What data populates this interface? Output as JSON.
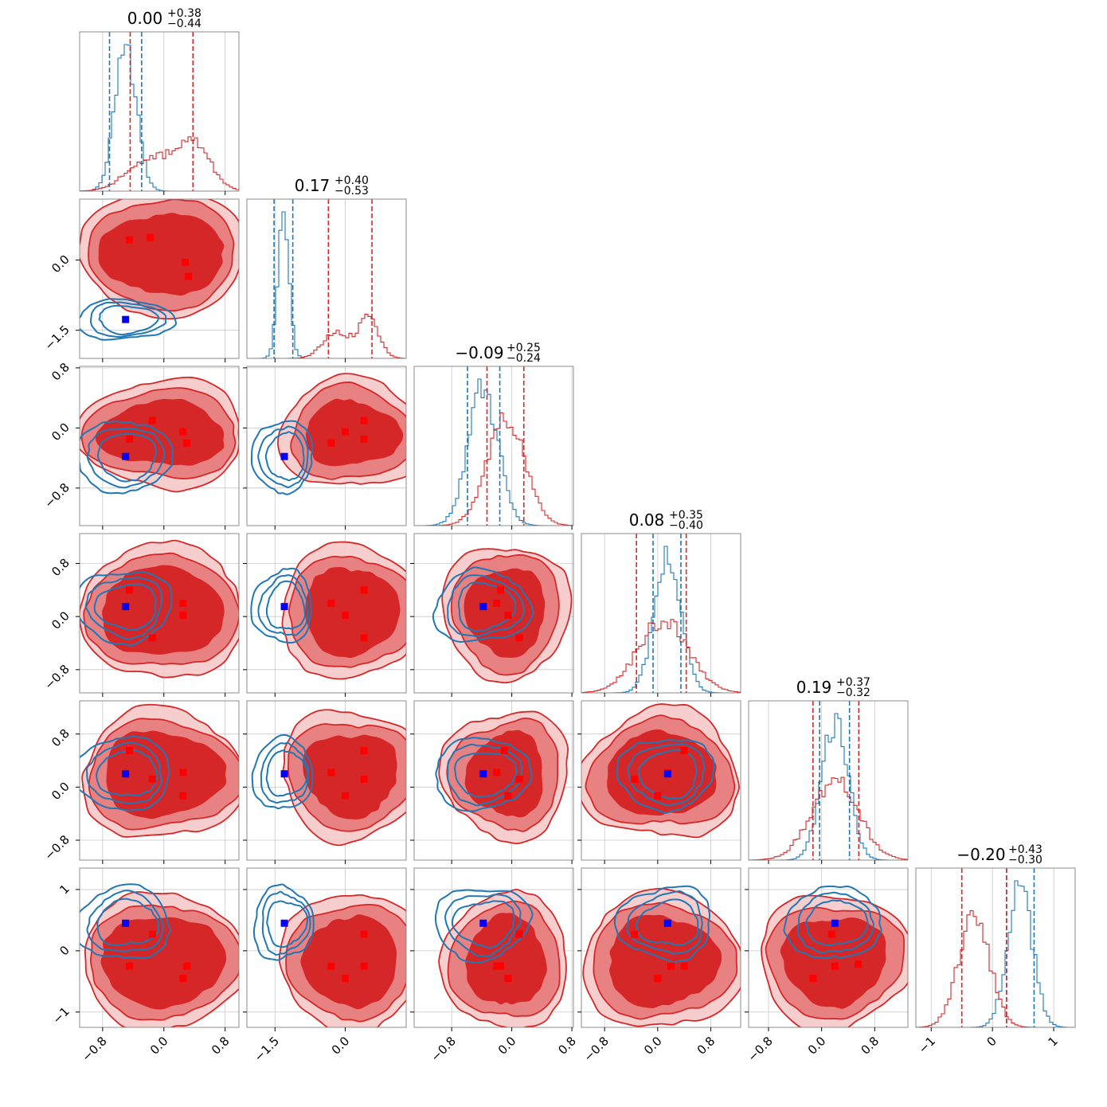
{
  "chart_data": {
    "type": "corner",
    "n_params": 6,
    "series": [
      {
        "name": "",
        "color": "#d62728",
        "point_color": "#ff0000",
        "fill": "#d62728"
      },
      {
        "name": "",
        "color": "#1f77b4",
        "point_color": "#0000ff",
        "fill": "none"
      }
    ],
    "titles": [
      {
        "value": "0.00",
        "plus": "+0.38",
        "minus": "−0.44"
      },
      {
        "value": "0.17",
        "plus": "+0.40",
        "minus": "−0.53"
      },
      {
        "value": "−0.09",
        "plus": "+0.25",
        "minus": "−0.24"
      },
      {
        "value": "0.08",
        "plus": "+0.35",
        "minus": "−0.40"
      },
      {
        "value": "0.19",
        "plus": "+0.37",
        "minus": "−0.32"
      },
      {
        "value": "−0.20",
        "plus": "+0.43",
        "minus": "−0.30"
      }
    ],
    "ranges": [
      [
        -1.1,
        0.98
      ],
      [
        -2.1,
        1.3
      ],
      [
        -1.3,
        0.82
      ],
      [
        -1.15,
        1.25
      ],
      [
        -1.1,
        1.3
      ],
      [
        -1.25,
        1.35
      ]
    ],
    "ticks": [
      [
        {
          "v": -0.8,
          "label": "−0.8"
        },
        {
          "v": 0.0,
          "label": "0.0"
        },
        {
          "v": 0.8,
          "label": "0.8"
        }
      ],
      [
        {
          "v": -1.5,
          "label": "−1.5"
        },
        {
          "v": 0.0,
          "label": "0.0"
        }
      ],
      [
        {
          "v": -0.8,
          "label": "−0.8"
        },
        {
          "v": 0.0,
          "label": "0.0"
        },
        {
          "v": 0.8,
          "label": "0.8"
        }
      ],
      [
        {
          "v": -0.8,
          "label": "−0.8"
        },
        {
          "v": 0.0,
          "label": "0.0"
        },
        {
          "v": 0.8,
          "label": "0.8"
        }
      ],
      [
        {
          "v": -0.8,
          "label": "−0.8"
        },
        {
          "v": 0.0,
          "label": "0.0"
        },
        {
          "v": 0.8,
          "label": "0.8"
        }
      ],
      [
        {
          "v": -1,
          "label": "−1"
        },
        {
          "v": 0,
          "label": "0"
        },
        {
          "v": 1,
          "label": "1"
        }
      ]
    ],
    "quantiles": [
      {
        "red": [
          -0.44,
          0.38
        ],
        "red_median": 0.0,
        "blue": [
          -0.71,
          -0.29
        ]
      },
      {
        "red": [
          -0.36,
          0.57
        ],
        "red_median": 0.17,
        "blue": [
          -1.52,
          -1.12
        ]
      },
      {
        "red": [
          -0.33,
          0.16
        ],
        "red_median": -0.09,
        "blue": [
          -0.59,
          -0.16
        ]
      },
      {
        "red": [
          -0.32,
          0.43
        ],
        "red_median": 0.08,
        "blue": [
          -0.07,
          0.35
        ]
      },
      {
        "red": [
          -0.13,
          0.56
        ],
        "red_median": 0.19,
        "blue": [
          -0.03,
          0.42
        ]
      },
      {
        "red": [
          -0.5,
          0.23
        ],
        "red_median": -0.2,
        "blue": [
          0.23,
          0.68
        ]
      }
    ],
    "hist": [
      {
        "red": {
          "mix": [
            [
              0.45,
              -0.2,
              0.28
            ],
            [
              0.55,
              0.38,
              0.22
            ]
          ]
        },
        "blue": {
          "mix": [
            [
              1.0,
              -0.5,
              0.14
            ]
          ]
        }
      },
      {
        "red": {
          "mix": [
            [
              0.45,
              -0.2,
              0.28
            ],
            [
              0.55,
              0.5,
              0.22
            ]
          ]
        },
        "blue": {
          "mix": [
            [
              1.0,
              -1.32,
              0.12
            ]
          ]
        }
      },
      {
        "red": {
          "mix": [
            [
              1.0,
              -0.08,
              0.25
            ]
          ]
        },
        "blue": {
          "mix": [
            [
              1.0,
              -0.38,
              0.2
            ]
          ]
        }
      },
      {
        "red": {
          "mix": [
            [
              1.0,
              0.08,
              0.38
            ]
          ]
        },
        "blue": {
          "mix": [
            [
              1.0,
              0.15,
              0.2
            ]
          ]
        }
      },
      {
        "red": {
          "mix": [
            [
              1.0,
              0.2,
              0.35
            ]
          ]
        },
        "blue": {
          "mix": [
            [
              1.0,
              0.2,
              0.2
            ]
          ]
        }
      },
      {
        "red": {
          "mix": [
            [
              1.0,
              -0.3,
              0.25
            ]
          ]
        },
        "blue": {
          "mix": [
            [
              1.0,
              0.45,
              0.2
            ]
          ]
        }
      }
    ],
    "pairs": [
      {
        "row": 1,
        "col": 0,
        "red_points": [
          [
            -0.45,
            0.43
          ],
          [
            -0.18,
            0.48
          ],
          [
            0.28,
            -0.05
          ],
          [
            0.32,
            -0.35
          ]
        ],
        "blue_point": [
          -0.5,
          -1.27
        ]
      },
      {
        "row": 2,
        "col": 0,
        "red_points": [
          [
            -0.45,
            -0.15
          ],
          [
            -0.15,
            0.1
          ],
          [
            0.25,
            -0.05
          ],
          [
            0.3,
            -0.2
          ]
        ],
        "blue_point": [
          -0.5,
          -0.38
        ]
      },
      {
        "row": 2,
        "col": 1,
        "red_points": [
          [
            -0.3,
            -0.2
          ],
          [
            0.0,
            -0.05
          ],
          [
            0.4,
            0.1
          ],
          [
            0.4,
            -0.15
          ]
        ],
        "blue_point": [
          -1.3,
          -0.38
        ]
      },
      {
        "row": 2,
        "col": 2,
        "red_points": [],
        "blue_point": null
      },
      {
        "row": 3,
        "col": 0,
        "red_points": [
          [
            -0.45,
            0.4
          ],
          [
            -0.15,
            -0.32
          ],
          [
            0.25,
            0.2
          ],
          [
            0.25,
            0.02
          ]
        ],
        "blue_point": [
          -0.5,
          0.15
        ]
      },
      {
        "row": 3,
        "col": 1,
        "red_points": [
          [
            -0.3,
            0.2
          ],
          [
            0.0,
            0.02
          ],
          [
            0.4,
            0.4
          ],
          [
            0.4,
            -0.32
          ]
        ],
        "blue_point": [
          -1.3,
          0.15
        ]
      },
      {
        "row": 3,
        "col": 2,
        "red_points": [
          [
            -0.15,
            0.4
          ],
          [
            -0.2,
            0.2
          ],
          [
            -0.05,
            0.02
          ],
          [
            0.1,
            -0.32
          ]
        ],
        "blue_point": [
          -0.38,
          0.15
        ]
      },
      {
        "row": 4,
        "col": 0,
        "red_points": [
          [
            -0.45,
            0.55
          ],
          [
            -0.15,
            0.12
          ],
          [
            0.25,
            0.22
          ],
          [
            0.25,
            -0.13
          ]
        ],
        "blue_point": [
          -0.5,
          0.2
        ]
      },
      {
        "row": 4,
        "col": 1,
        "red_points": [
          [
            -0.3,
            0.22
          ],
          [
            0.0,
            -0.13
          ],
          [
            0.4,
            0.55
          ],
          [
            0.4,
            0.12
          ]
        ],
        "blue_point": [
          -1.3,
          0.2
        ]
      },
      {
        "row": 4,
        "col": 2,
        "red_points": [
          [
            -0.2,
            0.22
          ],
          [
            0.1,
            0.12
          ],
          [
            -0.05,
            -0.13
          ],
          [
            -0.1,
            0.55
          ]
        ],
        "blue_point": [
          -0.38,
          0.2
        ]
      },
      {
        "row": 4,
        "col": 3,
        "red_points": [
          [
            -0.35,
            0.12
          ],
          [
            0.15,
            0.22
          ],
          [
            0.4,
            0.55
          ],
          [
            0.0,
            -0.13
          ]
        ],
        "blue_point": [
          0.15,
          0.2
        ]
      },
      {
        "row": 5,
        "col": 0,
        "red_points": [
          [
            -0.45,
            -0.25
          ],
          [
            -0.15,
            0.27
          ],
          [
            0.25,
            -0.45
          ],
          [
            0.3,
            -0.25
          ]
        ],
        "blue_point": [
          -0.5,
          0.45
        ]
      },
      {
        "row": 5,
        "col": 1,
        "red_points": [
          [
            -0.3,
            -0.25
          ],
          [
            0.0,
            -0.45
          ],
          [
            0.4,
            0.27
          ],
          [
            0.4,
            -0.25
          ]
        ],
        "blue_point": [
          -1.3,
          0.45
        ]
      },
      {
        "row": 5,
        "col": 2,
        "red_points": [
          [
            -0.2,
            -0.25
          ],
          [
            -0.15,
            -0.25
          ],
          [
            -0.05,
            -0.45
          ],
          [
            0.1,
            0.27
          ]
        ],
        "blue_point": [
          -0.38,
          0.45
        ]
      },
      {
        "row": 5,
        "col": 3,
        "red_points": [
          [
            -0.35,
            0.27
          ],
          [
            0.0,
            -0.45
          ],
          [
            0.2,
            -0.25
          ],
          [
            0.4,
            -0.25
          ]
        ],
        "blue_point": [
          0.15,
          0.45
        ]
      },
      {
        "row": 5,
        "col": 4,
        "red_points": [
          [
            -0.13,
            -0.45
          ],
          [
            0.15,
            0.27
          ],
          [
            0.2,
            -0.25
          ],
          [
            0.55,
            -0.22
          ]
        ],
        "blue_point": [
          0.2,
          0.45
        ]
      }
    ]
  }
}
